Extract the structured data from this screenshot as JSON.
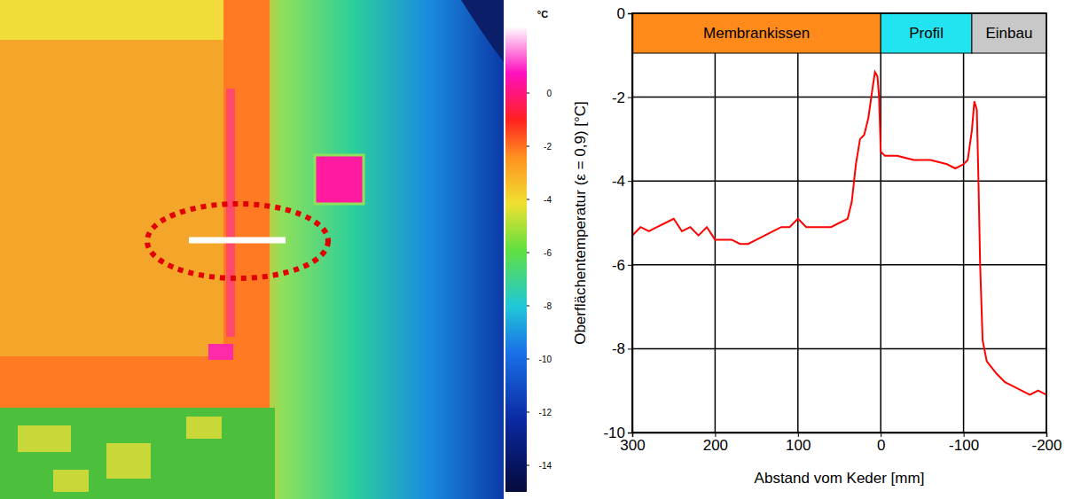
{
  "chart_data": [
    {
      "type": "thermal_image",
      "colorbar": {
        "label": "°C",
        "range": [
          -15,
          2.5
        ],
        "ticks": [
          0,
          -2,
          -4,
          -6,
          -8,
          -10,
          -12,
          -14
        ]
      }
    },
    {
      "type": "line",
      "xlabel": "Abstand vom Keder [mm]",
      "ylabel": "Oberflächentemperatur (ε = 0,9) [°C]",
      "bands": [
        {
          "label": "Membrankissen",
          "from": 300,
          "to": 0,
          "color": "#ff8a1c"
        },
        {
          "label": "Profil",
          "from": 0,
          "to": -110,
          "color": "#22e4f0"
        },
        {
          "label": "Einbau",
          "from": -110,
          "to": -200,
          "color": "#c8c8c8"
        }
      ],
      "x": [
        300,
        290,
        280,
        270,
        260,
        250,
        240,
        230,
        220,
        210,
        200,
        190,
        180,
        170,
        160,
        150,
        140,
        130,
        120,
        110,
        100,
        90,
        80,
        70,
        60,
        50,
        40,
        35,
        30,
        25,
        20,
        15,
        10,
        7,
        4,
        2,
        0,
        -5,
        -20,
        -40,
        -60,
        -80,
        -90,
        -100,
        -105,
        -110,
        -113,
        -116,
        -118,
        -120,
        -123,
        -128,
        -140,
        -150,
        -160,
        -170,
        -180,
        -190,
        -200
      ],
      "values": [
        -5.3,
        -5.1,
        -5.2,
        -5.1,
        -5.0,
        -4.9,
        -5.2,
        -5.1,
        -5.3,
        -5.1,
        -5.4,
        -5.4,
        -5.4,
        -5.5,
        -5.5,
        -5.4,
        -5.3,
        -5.2,
        -5.1,
        -5.1,
        -4.9,
        -5.1,
        -5.1,
        -5.1,
        -5.1,
        -5.0,
        -4.9,
        -4.5,
        -3.6,
        -3.0,
        -2.9,
        -2.5,
        -1.8,
        -1.4,
        -1.5,
        -2.0,
        -3.3,
        -3.4,
        -3.4,
        -3.5,
        -3.5,
        -3.6,
        -3.7,
        -3.6,
        -3.5,
        -2.8,
        -2.1,
        -2.3,
        -4.0,
        -6.0,
        -7.8,
        -8.3,
        -8.6,
        -8.8,
        -8.9,
        -9.0,
        -9.1,
        -9.0,
        -9.1
      ],
      "color": "#ff0000",
      "xlim": [
        300,
        -200
      ],
      "xticks": [
        300,
        200,
        100,
        0,
        -100,
        -200
      ],
      "ylim": [
        -10,
        0
      ],
      "yticks": [
        -10,
        -8,
        -6,
        -4,
        -2,
        0
      ],
      "grid": true
    }
  ]
}
